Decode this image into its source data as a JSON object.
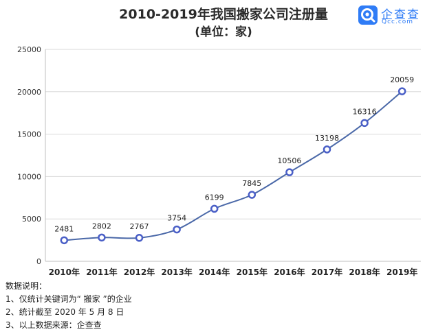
{
  "title": "2010-2019年我国搬家公司注册量",
  "subtitle": "(单位：家)",
  "brand": {
    "name": "企查查",
    "url": "Qcc.com",
    "color": "#2f7cf6"
  },
  "chart_data": {
    "type": "line",
    "categories": [
      "2010年",
      "2011年",
      "2012年",
      "2013年",
      "2014年",
      "2015年",
      "2016年",
      "2017年",
      "2018年",
      "2019年"
    ],
    "series": [
      {
        "values": [
          2481,
          2802,
          2767,
          3754,
          6199,
          7845,
          10506,
          13198,
          16316,
          20059
        ]
      }
    ],
    "ylim": [
      0,
      25000
    ],
    "yticks": [
      0,
      5000,
      10000,
      15000,
      20000,
      25000
    ],
    "grid": true,
    "data_labels": true,
    "line_color": "#4a68a8",
    "marker_color": "#4a5fc7"
  },
  "notes": {
    "heading": "数据说明：",
    "items": [
      "1、仅统计关键词为“ 搬家 ”的企业",
      "2、统计截至 2020 年 5 月 8 日",
      "3、以上数据来源：企查查"
    ]
  }
}
